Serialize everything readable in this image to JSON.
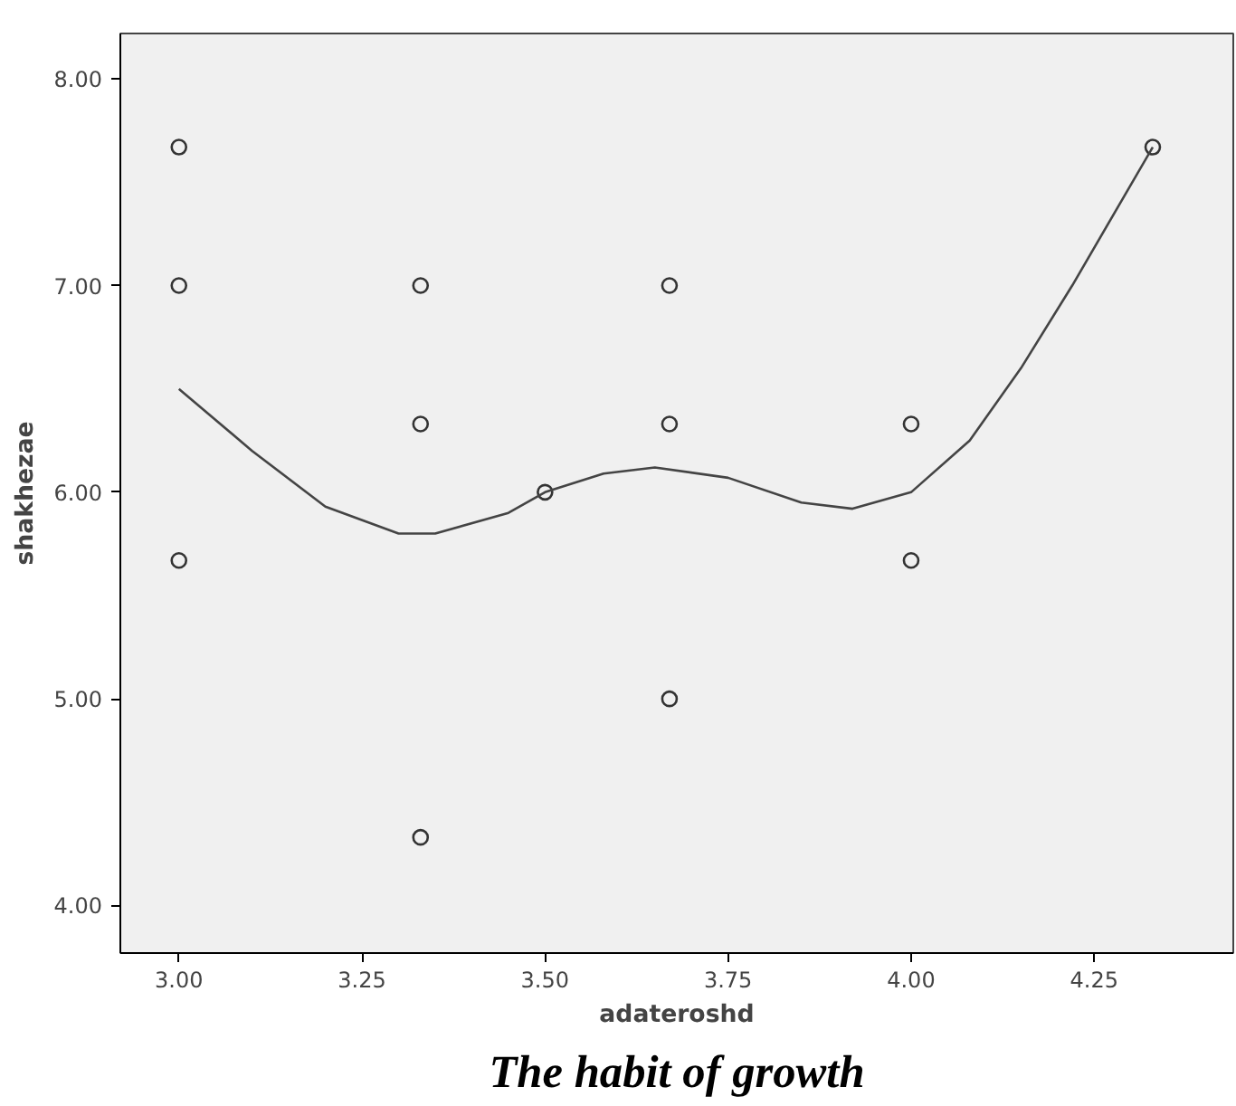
{
  "chart_data": {
    "type": "scatter",
    "title": "The habit of growth",
    "xlabel": "adateroshd",
    "ylabel": "shakhezae",
    "xlim": [
      2.92,
      4.44
    ],
    "ylim": [
      3.77,
      8.22
    ],
    "xticks": [
      {
        "value": 3,
        "label": "3.00"
      },
      {
        "value": 3.25,
        "label": "3.25"
      },
      {
        "value": 3.5,
        "label": "3.50"
      },
      {
        "value": 3.75,
        "label": "3.75"
      },
      {
        "value": 4,
        "label": "4.00"
      },
      {
        "value": 4.25,
        "label": "4.25"
      }
    ],
    "yticks": [
      {
        "value": 4,
        "label": "4.00"
      },
      {
        "value": 5,
        "label": "5.00"
      },
      {
        "value": 6,
        "label": "6.00"
      },
      {
        "value": 7,
        "label": "7.00"
      },
      {
        "value": 8,
        "label": "8.00"
      }
    ],
    "marker": "circle",
    "grid": false,
    "series": [
      {
        "color": "#333333",
        "x": [
          3,
          3,
          3,
          3.33,
          3.33,
          3.33,
          3.5,
          3.67,
          3.67,
          3.67,
          4,
          4,
          4.33
        ],
        "values": [
          7.67,
          7,
          5.67,
          7,
          6.33,
          4.33,
          6,
          7,
          6.33,
          5,
          6.33,
          5.67,
          7.67
        ]
      },
      {
        "type": "line",
        "color": "#444444",
        "marker": "none",
        "x": [
          3.0,
          3.1,
          3.2,
          3.3,
          3.35,
          3.45,
          3.5,
          3.58,
          3.65,
          3.75,
          3.85,
          3.92,
          4.0,
          4.08,
          4.15,
          4.22,
          4.33
        ],
        "values": [
          6.5,
          6.2,
          5.93,
          5.8,
          5.8,
          5.9,
          6.0,
          6.09,
          6.12,
          6.07,
          5.95,
          5.92,
          6.0,
          6.25,
          6.6,
          7.0,
          7.67
        ]
      }
    ]
  }
}
